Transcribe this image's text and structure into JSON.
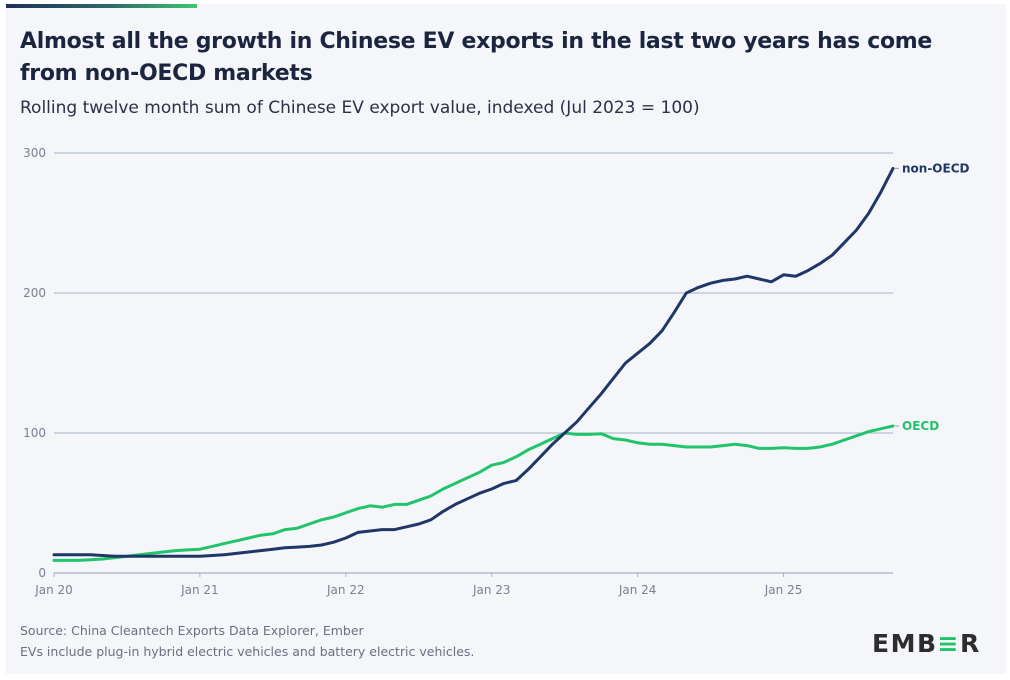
{
  "header": {
    "title": "Almost all the growth in Chinese EV exports in the last two years has come from non-OECD markets",
    "subtitle": "Rolling twelve month sum of Chinese EV export value, indexed (Jul 2023 = 100)"
  },
  "footer": {
    "source": "Source: China Cleantech Exports Data Explorer, Ember",
    "note": "EVs include plug-in hybrid electric vehicles and battery electric vehicles.",
    "logo_prefix": "EMB",
    "logo_accent": "≡",
    "logo_suffix": "R"
  },
  "colors": {
    "non_oecd": "#1f3668",
    "oecd": "#22c46b",
    "grid": "#a9b0c6",
    "background": "#f4f6fa"
  },
  "chart_data": {
    "type": "line",
    "title": "Almost all the growth in Chinese EV exports in the last two years has come from non-OECD markets",
    "subtitle": "Rolling twelve month sum of Chinese EV export value, indexed (Jul 2023 = 100)",
    "xlabel": "",
    "ylabel": "",
    "x_start": "Jan 2020",
    "x_end": "Oct 2025",
    "x_frequency": "monthly",
    "x_ticks": [
      "Jan 20",
      "Jan 21",
      "Jan 22",
      "Jan 23",
      "Jan 24",
      "Jan 25"
    ],
    "x_tick_months": [
      0,
      12,
      24,
      36,
      48,
      60
    ],
    "y_ticks": [
      "0",
      "100",
      "200",
      "300"
    ],
    "y_tick_values": [
      0,
      100,
      200,
      300
    ],
    "ylim": [
      0,
      300
    ],
    "xlim_months": [
      0,
      69
    ],
    "grid": true,
    "legend": "inline-right",
    "series": [
      {
        "name": "non-OECD",
        "color": "#1f3668",
        "values": [
          13,
          13,
          13,
          13,
          12.5,
          12,
          12,
          12,
          12,
          12,
          12,
          12,
          12,
          12.5,
          13,
          14,
          15,
          16,
          17,
          18,
          18.5,
          19,
          20,
          22,
          25,
          29,
          30,
          31,
          31,
          33,
          35,
          38,
          44,
          49,
          53,
          57,
          60,
          64,
          66,
          74,
          83,
          92,
          100,
          108,
          118,
          128,
          139,
          150,
          157,
          164,
          173,
          186,
          200,
          204,
          207,
          209,
          210,
          212,
          210,
          208,
          213,
          212,
          216,
          221,
          227,
          236,
          245,
          257,
          272,
          289
        ]
      },
      {
        "name": "OECD",
        "color": "#22c46b",
        "values": [
          9,
          9,
          9,
          9.5,
          10,
          11,
          12,
          13,
          14,
          15,
          16,
          16.5,
          17,
          19,
          21,
          23,
          25,
          27,
          28,
          31,
          32,
          35,
          38,
          40,
          43,
          46,
          48,
          47,
          49,
          49,
          52,
          55,
          60,
          64,
          68,
          72,
          77,
          79,
          83,
          88,
          92,
          96,
          100,
          99,
          99,
          99.5,
          96,
          95,
          93,
          92,
          92,
          91,
          90,
          90,
          90,
          91,
          92,
          91,
          89,
          89,
          89.5,
          89,
          89,
          90,
          92,
          95,
          98,
          101,
          103,
          105
        ]
      }
    ]
  }
}
